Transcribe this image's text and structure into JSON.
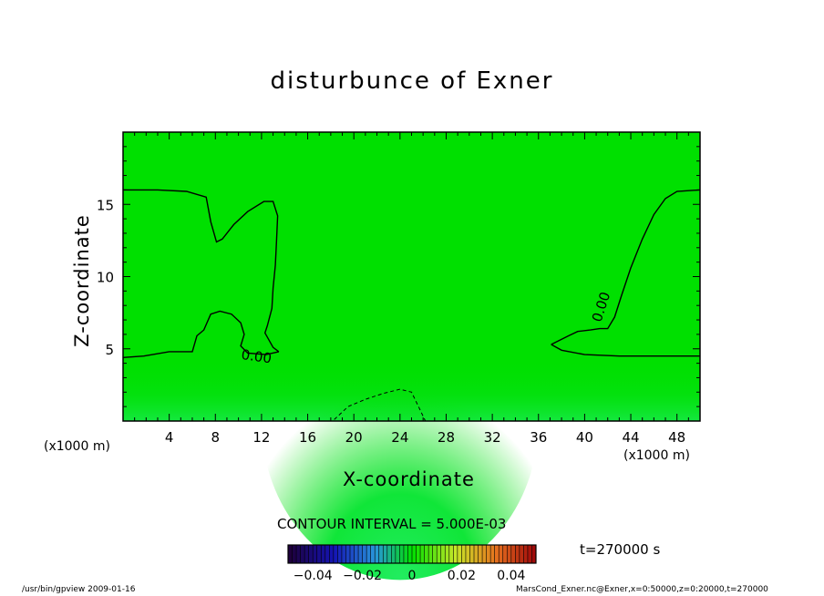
{
  "chart_data": {
    "type": "contour",
    "title": "disturbunce of Exner",
    "xlabel": "X-coordinate",
    "ylabel": "Z-coordinate",
    "x_unit_left": "(x1000 m)",
    "x_unit_right": "(x1000 m)",
    "xlim": [
      0,
      50
    ],
    "ylim": [
      0,
      20
    ],
    "x_ticks": [
      4,
      8,
      12,
      16,
      20,
      24,
      28,
      32,
      36,
      40,
      44,
      48
    ],
    "y_ticks": [
      5,
      10,
      15
    ],
    "contour_labels": [
      "0.00",
      "0.00"
    ],
    "contour_interval_text": "CONTOUR INTERVAL = 5.000E-03",
    "colorbar": {
      "range": [
        -0.05,
        0.05
      ],
      "ticks": [
        "−0.04",
        "−0.02",
        "0",
        "0.02",
        "0.04"
      ]
    },
    "time_label": "t=270000 s",
    "footer_left": "/usr/bin/gpview  2009-01-16",
    "footer_right": "MarsCond_Exner.nc@Exner,x=0:50000,z=0:20000,t=270000",
    "colors": {
      "field_base": "#00e000",
      "field_low": "#22ec60",
      "contour": "#000000"
    }
  }
}
